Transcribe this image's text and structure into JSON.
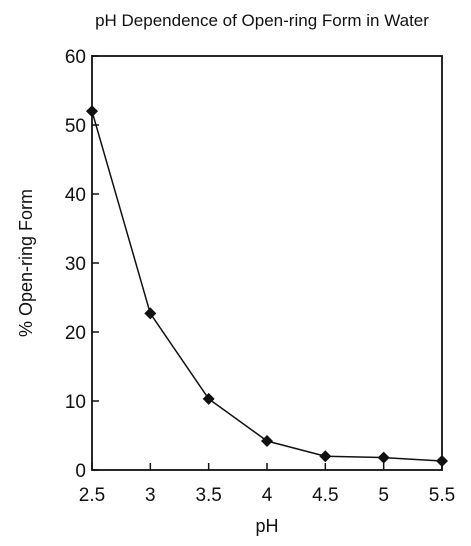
{
  "chart_data": {
    "type": "line",
    "title": "pH Dependence of Open-ring Form in Water",
    "xlabel": "pH",
    "ylabel": "% Open-ring Form",
    "xlim": [
      2.5,
      5.5
    ],
    "ylim": [
      0,
      60
    ],
    "x_ticks": [
      "2.5",
      "3",
      "3.5",
      "4",
      "4.5",
      "5",
      "5.5"
    ],
    "y_ticks": [
      "0",
      "10",
      "20",
      "30",
      "40",
      "50",
      "60"
    ],
    "grid": false,
    "marker": "diamond",
    "series": [
      {
        "x": [
          2.5,
          3,
          3.5,
          4,
          4.5,
          5,
          5.5
        ],
        "y": [
          52,
          22.7,
          10.3,
          4.2,
          2.0,
          1.8,
          1.3
        ]
      }
    ]
  }
}
